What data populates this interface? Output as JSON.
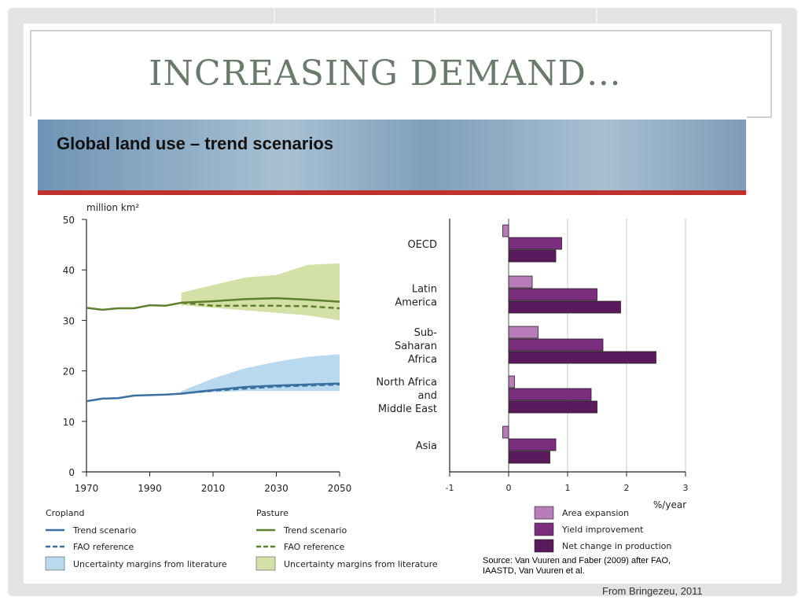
{
  "slide": {
    "title": "INCREASING DEMAND…",
    "credit": "From Bringezeu, 2011"
  },
  "figure": {
    "banner_title": "Global land use – trend scenarios",
    "source_line1": "Source: Van Vuuren and Faber (2009) after FAO,",
    "source_line2": "IAASTD, Van Vuuren et al."
  },
  "colors": {
    "cropland": "#3a6f9f",
    "cropland_band": "#b8d9ee",
    "pasture": "#5e7f2e",
    "pasture_band": "#d3e0a6",
    "area_expansion": "#b87db8",
    "yield_improvement": "#7b2e7e",
    "net_change": "#5a1a5c",
    "banner_red": "#c0302c"
  },
  "chart_data": [
    {
      "type": "line",
      "ylabel": "million km²",
      "ylim": [
        0,
        50
      ],
      "xlim": [
        1970,
        2050
      ],
      "xticks": [
        1970,
        1990,
        2010,
        2030,
        2050
      ],
      "yticks": [
        0,
        10,
        20,
        30,
        40,
        50
      ],
      "series": [
        {
          "name": "Cropland Trend scenario",
          "group": "Cropland",
          "style": "solid",
          "x": [
            1970,
            1975,
            1980,
            1985,
            1990,
            1995,
            2000,
            2010,
            2020,
            2030,
            2040,
            2050
          ],
          "y": [
            14,
            14.5,
            14.6,
            15.1,
            15.2,
            15.3,
            15.5,
            16.2,
            16.8,
            17.1,
            17.3,
            17.5
          ]
        },
        {
          "name": "Cropland FAO reference",
          "group": "Cropland",
          "style": "dashed",
          "x": [
            2000,
            2010,
            2020,
            2030,
            2040,
            2050
          ],
          "y": [
            15.5,
            16.1,
            16.5,
            16.9,
            17.1,
            17.3
          ]
        },
        {
          "name": "Pasture Trend scenario",
          "group": "Pasture",
          "style": "solid",
          "x": [
            1970,
            1975,
            1980,
            1985,
            1990,
            1995,
            2000,
            2010,
            2020,
            2030,
            2040,
            2050
          ],
          "y": [
            32.5,
            32.1,
            32.4,
            32.4,
            33,
            32.9,
            33.5,
            33.8,
            34.2,
            34.4,
            34.1,
            33.7
          ]
        },
        {
          "name": "Pasture FAO reference",
          "group": "Pasture",
          "style": "dashed",
          "x": [
            2000,
            2010,
            2020,
            2030,
            2040,
            2050
          ],
          "y": [
            33.5,
            32.9,
            32.9,
            32.9,
            32.8,
            32.4
          ]
        }
      ],
      "bands": [
        {
          "name": "Cropland Uncertainty margins from literature",
          "group": "Cropland",
          "x": [
            2000,
            2010,
            2020,
            2030,
            2040,
            2050
          ],
          "upper": [
            16,
            18.5,
            20.5,
            21.8,
            22.8,
            23.3
          ],
          "lower": [
            15.4,
            15.8,
            16,
            16,
            16,
            16
          ]
        },
        {
          "name": "Pasture Uncertainty margins from literature",
          "group": "Pasture",
          "x": [
            2000,
            2010,
            2020,
            2030,
            2040,
            2050
          ],
          "upper": [
            35.5,
            37,
            38.5,
            39,
            41,
            41.3
          ],
          "lower": [
            33,
            32.5,
            32,
            31.5,
            31,
            30
          ]
        }
      ],
      "legend_groups": [
        "Cropland",
        "Pasture"
      ],
      "legend_entries": [
        "Trend scenario",
        "FAO reference",
        "Uncertainty margins from literature"
      ]
    },
    {
      "type": "bar",
      "orientation": "horizontal",
      "xlabel": "%/year",
      "xlim": [
        -1,
        3
      ],
      "xticks": [
        -1,
        0,
        1,
        2,
        3
      ],
      "categories": [
        "OECD",
        "Latin America",
        "Sub-Saharan Africa",
        "North Africa and Middle East",
        "Asia"
      ],
      "category_lines": [
        [
          "OECD"
        ],
        [
          "Latin",
          "America"
        ],
        [
          "Sub-",
          "Saharan",
          "Africa"
        ],
        [
          "North Africa",
          "and",
          "Middle East"
        ],
        [
          "Asia"
        ]
      ],
      "series": [
        {
          "name": "Area expansion",
          "values": [
            -0.1,
            0.4,
            0.5,
            0.1,
            -0.1
          ]
        },
        {
          "name": "Yield improvement",
          "values": [
            0.9,
            1.5,
            1.6,
            1.4,
            0.8
          ]
        },
        {
          "name": "Net change in production",
          "values": [
            0.8,
            1.9,
            2.5,
            1.5,
            0.7
          ]
        }
      ],
      "grid": true,
      "legend": "bottom-right"
    }
  ]
}
